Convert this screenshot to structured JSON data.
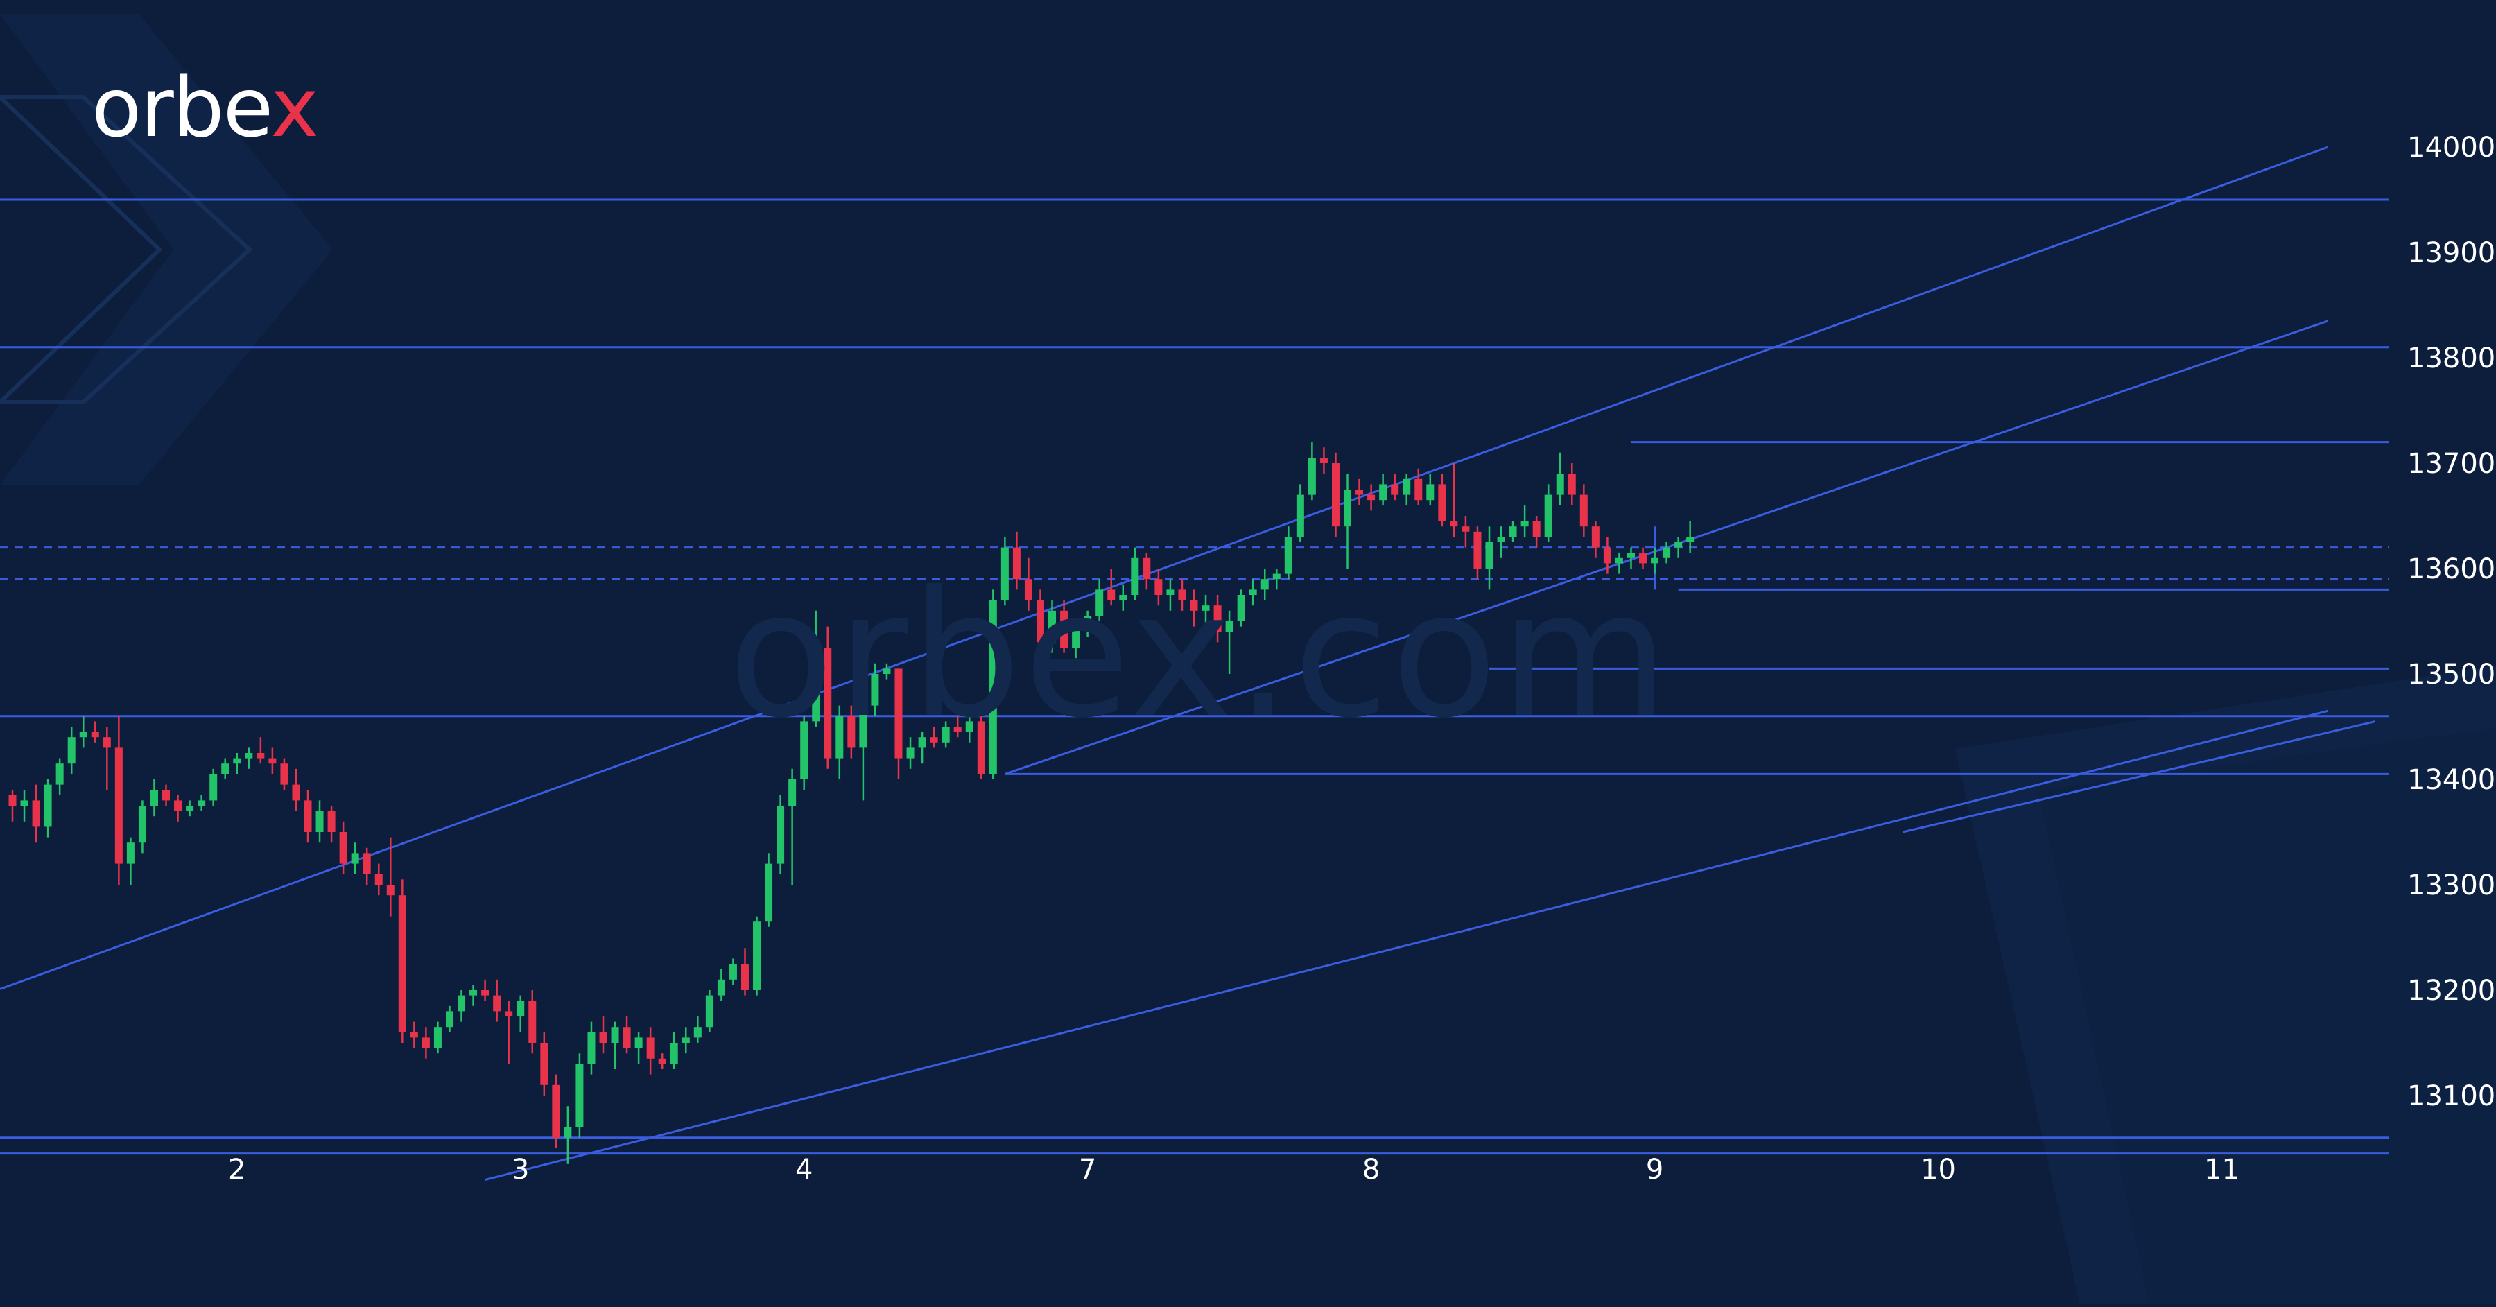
{
  "brand": {
    "logo_text": "orbe",
    "logo_accent": "x",
    "watermark": "orbex.com"
  },
  "colors": {
    "background": "#0c1e3c",
    "up": "#23c36a",
    "down": "#e8334a",
    "line": "#3a5de0",
    "tick_text": "#ffffff"
  },
  "chart_data": {
    "type": "candlestick",
    "xlabel": "",
    "ylabel": "",
    "x_ticks": [
      {
        "label": "2",
        "index": 19
      },
      {
        "label": "3",
        "index": 43
      },
      {
        "label": "4",
        "index": 67
      },
      {
        "label": "7",
        "index": 91
      },
      {
        "label": "8",
        "index": 115
      },
      {
        "label": "9",
        "index": 139
      },
      {
        "label": "10",
        "index": 163
      },
      {
        "label": "11",
        "index": 187
      }
    ],
    "y_ticks": [
      14000,
      13900,
      13800,
      13700,
      13600,
      13500,
      13400,
      13300,
      13200,
      13100
    ],
    "ylim": [
      13030,
      14060
    ],
    "candles": [
      [
        13385,
        13390,
        13360,
        13375
      ],
      [
        13375,
        13390,
        13360,
        13380
      ],
      [
        13380,
        13395,
        13340,
        13355
      ],
      [
        13355,
        13400,
        13345,
        13395
      ],
      [
        13395,
        13420,
        13385,
        13415
      ],
      [
        13415,
        13450,
        13405,
        13440
      ],
      [
        13440,
        13460,
        13430,
        13445
      ],
      [
        13445,
        13455,
        13435,
        13440
      ],
      [
        13440,
        13450,
        13390,
        13430
      ],
      [
        13430,
        13460,
        13300,
        13320
      ],
      [
        13320,
        13345,
        13300,
        13340
      ],
      [
        13340,
        13380,
        13330,
        13375
      ],
      [
        13375,
        13400,
        13365,
        13390
      ],
      [
        13390,
        13395,
        13375,
        13380
      ],
      [
        13380,
        13385,
        13360,
        13370
      ],
      [
        13370,
        13380,
        13365,
        13375
      ],
      [
        13375,
        13385,
        13370,
        13380
      ],
      [
        13380,
        13410,
        13375,
        13405
      ],
      [
        13405,
        13420,
        13400,
        13415
      ],
      [
        13415,
        13425,
        13405,
        13420
      ],
      [
        13420,
        13430,
        13410,
        13425
      ],
      [
        13425,
        13440,
        13415,
        13420
      ],
      [
        13420,
        13430,
        13405,
        13415
      ],
      [
        13415,
        13420,
        13390,
        13395
      ],
      [
        13395,
        13410,
        13370,
        13380
      ],
      [
        13380,
        13390,
        13340,
        13350
      ],
      [
        13350,
        13380,
        13340,
        13370
      ],
      [
        13370,
        13375,
        13340,
        13350
      ],
      [
        13350,
        13360,
        13310,
        13320
      ],
      [
        13320,
        13340,
        13310,
        13330
      ],
      [
        13330,
        13335,
        13300,
        13310
      ],
      [
        13310,
        13320,
        13290,
        13300
      ],
      [
        13300,
        13345,
        13270,
        13290
      ],
      [
        13290,
        13305,
        13150,
        13160
      ],
      [
        13160,
        13170,
        13145,
        13155
      ],
      [
        13155,
        13165,
        13135,
        13145
      ],
      [
        13145,
        13170,
        13140,
        13165
      ],
      [
        13165,
        13185,
        13160,
        13180
      ],
      [
        13180,
        13200,
        13170,
        13195
      ],
      [
        13195,
        13205,
        13185,
        13200
      ],
      [
        13200,
        13210,
        13190,
        13195
      ],
      [
        13195,
        13210,
        13170,
        13180
      ],
      [
        13180,
        13190,
        13130,
        13175
      ],
      [
        13175,
        13195,
        13160,
        13190
      ],
      [
        13190,
        13200,
        13140,
        13150
      ],
      [
        13150,
        13160,
        13100,
        13110
      ],
      [
        13110,
        13120,
        13050,
        13060
      ],
      [
        13060,
        13090,
        13035,
        13070
      ],
      [
        13070,
        13140,
        13060,
        13130
      ],
      [
        13130,
        13170,
        13120,
        13160
      ],
      [
        13160,
        13175,
        13140,
        13150
      ],
      [
        13150,
        13170,
        13125,
        13165
      ],
      [
        13165,
        13175,
        13140,
        13145
      ],
      [
        13145,
        13160,
        13130,
        13155
      ],
      [
        13155,
        13165,
        13120,
        13135
      ],
      [
        13135,
        13140,
        13125,
        13130
      ],
      [
        13130,
        13160,
        13125,
        13150
      ],
      [
        13150,
        13165,
        13140,
        13155
      ],
      [
        13155,
        13175,
        13150,
        13165
      ],
      [
        13165,
        13200,
        13160,
        13195
      ],
      [
        13195,
        13220,
        13190,
        13210
      ],
      [
        13210,
        13230,
        13205,
        13225
      ],
      [
        13225,
        13240,
        13195,
        13200
      ],
      [
        13200,
        13270,
        13195,
        13265
      ],
      [
        13265,
        13330,
        13260,
        13320
      ],
      [
        13320,
        13385,
        13310,
        13375
      ],
      [
        13375,
        13410,
        13300,
        13400
      ],
      [
        13400,
        13460,
        13390,
        13455
      ],
      [
        13455,
        13560,
        13450,
        13525
      ],
      [
        13525,
        13545,
        13410,
        13420
      ],
      [
        13420,
        13470,
        13400,
        13460
      ],
      [
        13460,
        13470,
        13420,
        13430
      ],
      [
        13430,
        13480,
        13380,
        13470
      ],
      [
        13470,
        13510,
        13460,
        13500
      ],
      [
        13500,
        13510,
        13495,
        13505
      ],
      [
        13505,
        13505,
        13400,
        13420
      ],
      [
        13420,
        13440,
        13410,
        13430
      ],
      [
        13430,
        13445,
        13415,
        13440
      ],
      [
        13440,
        13450,
        13430,
        13435
      ],
      [
        13435,
        13455,
        13430,
        13450
      ],
      [
        13450,
        13460,
        13440,
        13445
      ],
      [
        13445,
        13460,
        13435,
        13455
      ],
      [
        13455,
        13460,
        13400,
        13405
      ],
      [
        13405,
        13580,
        13400,
        13570
      ],
      [
        13570,
        13630,
        13565,
        13620
      ],
      [
        13620,
        13635,
        13580,
        13590
      ],
      [
        13590,
        13610,
        13560,
        13570
      ],
      [
        13570,
        13580,
        13520,
        13530
      ],
      [
        13530,
        13570,
        13520,
        13560
      ],
      [
        13560,
        13570,
        13520,
        13525
      ],
      [
        13525,
        13550,
        13515,
        13545
      ],
      [
        13545,
        13560,
        13535,
        13555
      ],
      [
        13555,
        13590,
        13550,
        13580
      ],
      [
        13580,
        13600,
        13565,
        13570
      ],
      [
        13570,
        13585,
        13560,
        13575
      ],
      [
        13575,
        13620,
        13570,
        13610
      ],
      [
        13610,
        13615,
        13580,
        13590
      ],
      [
        13590,
        13600,
        13565,
        13575
      ],
      [
        13575,
        13590,
        13560,
        13580
      ],
      [
        13580,
        13590,
        13560,
        13570
      ],
      [
        13570,
        13580,
        13545,
        13560
      ],
      [
        13560,
        13575,
        13540,
        13565
      ],
      [
        13565,
        13575,
        13530,
        13540
      ],
      [
        13540,
        13560,
        13500,
        13550
      ],
      [
        13550,
        13580,
        13545,
        13575
      ],
      [
        13575,
        13590,
        13565,
        13580
      ],
      [
        13580,
        13600,
        13570,
        13590
      ],
      [
        13590,
        13600,
        13580,
        13595
      ],
      [
        13595,
        13640,
        13590,
        13630
      ],
      [
        13630,
        13680,
        13625,
        13670
      ],
      [
        13670,
        13720,
        13665,
        13705
      ],
      [
        13705,
        13715,
        13690,
        13700
      ],
      [
        13700,
        13710,
        13630,
        13640
      ],
      [
        13640,
        13690,
        13600,
        13675
      ],
      [
        13675,
        13685,
        13660,
        13670
      ],
      [
        13670,
        13680,
        13655,
        13665
      ],
      [
        13665,
        13690,
        13660,
        13680
      ],
      [
        13680,
        13690,
        13665,
        13670
      ],
      [
        13670,
        13690,
        13660,
        13685
      ],
      [
        13685,
        13695,
        13660,
        13665
      ],
      [
        13665,
        13690,
        13660,
        13680
      ],
      [
        13680,
        13690,
        13640,
        13645
      ],
      [
        13645,
        13700,
        13630,
        13640
      ],
      [
        13640,
        13650,
        13620,
        13635
      ],
      [
        13635,
        13640,
        13590,
        13600
      ],
      [
        13600,
        13640,
        13580,
        13625
      ],
      [
        13625,
        13640,
        13610,
        13630
      ],
      [
        13630,
        13645,
        13625,
        13640
      ],
      [
        13640,
        13660,
        13630,
        13645
      ],
      [
        13645,
        13650,
        13620,
        13630
      ],
      [
        13630,
        13680,
        13625,
        13670
      ],
      [
        13670,
        13710,
        13660,
        13690
      ],
      [
        13690,
        13700,
        13660,
        13670
      ],
      [
        13670,
        13680,
        13630,
        13640
      ],
      [
        13640,
        13645,
        13610,
        13620
      ],
      [
        13620,
        13630,
        13595,
        13605
      ],
      [
        13605,
        13615,
        13595,
        13610
      ],
      [
        13610,
        13620,
        13600,
        13615
      ],
      [
        13615,
        13620,
        13600,
        13605
      ],
      [
        13605,
        13620,
        13595,
        13610
      ],
      [
        13610,
        13625,
        13605,
        13620
      ],
      [
        13620,
        13630,
        13610,
        13625
      ],
      [
        13625,
        13645,
        13615,
        13630
      ]
    ],
    "annotations": {
      "horizontal_levels": [
        13950,
        13810,
        13720,
        13505,
        13460,
        13405,
        13060,
        13045
      ],
      "short_levels": [
        {
          "value": 13720,
          "from_index": 137
        },
        {
          "value": 13580,
          "from_index": 141
        },
        {
          "value": 13505,
          "from_index": 125
        },
        {
          "value": 13405,
          "from_index": 84
        }
      ],
      "dashed_levels": [
        13620,
        13590
      ],
      "trend_lines": [
        {
          "from": [
            -5,
            13185
          ],
          "to": [
            196,
            14000
          ]
        },
        {
          "from": [
            84,
            13405
          ],
          "to": [
            196,
            13835
          ]
        },
        {
          "from": [
            40,
            13020
          ],
          "to": [
            196,
            13465
          ]
        },
        {
          "from": [
            160,
            13350
          ],
          "to": [
            200,
            13455
          ]
        }
      ]
    }
  }
}
